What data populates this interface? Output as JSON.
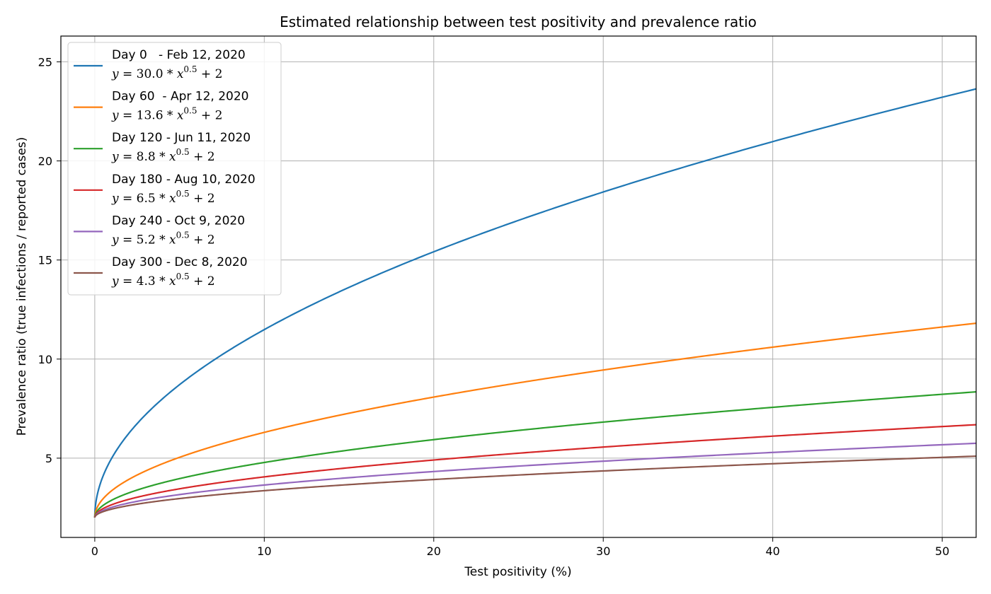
{
  "chart_data": {
    "type": "line",
    "title": "Estimated relationship between test positivity and prevalence ratio",
    "xlabel": "Test positivity (%)",
    "ylabel": "Prevalence ratio (true infections / reported cases)",
    "xlim": [
      -2,
      52
    ],
    "ylim": [
      1,
      26.3
    ],
    "xticks": [
      0,
      10,
      20,
      30,
      40,
      50
    ],
    "yticks": [
      5,
      10,
      15,
      20,
      25
    ],
    "grid": true,
    "legend_position": "upper-left",
    "x_fraction_max": 0.52,
    "series": [
      {
        "name": "Day 0   - Feb 12, 2020",
        "formula": {
          "coef": "30.0",
          "exp": "0.5",
          "const": "2"
        },
        "a": 30.0,
        "b": 2,
        "color": "#1f77b4"
      },
      {
        "name": "Day 60  - Apr 12, 2020",
        "formula": {
          "coef": "13.6",
          "exp": "0.5",
          "const": "2"
        },
        "a": 13.6,
        "b": 2,
        "color": "#ff7f0e"
      },
      {
        "name": "Day 120 - Jun 11, 2020",
        "formula": {
          "coef": "8.8",
          "exp": "0.5",
          "const": "2"
        },
        "a": 8.8,
        "b": 2,
        "color": "#2ca02c"
      },
      {
        "name": "Day 180 - Aug 10, 2020",
        "formula": {
          "coef": "6.5",
          "exp": "0.5",
          "const": "2"
        },
        "a": 6.5,
        "b": 2,
        "color": "#d62728"
      },
      {
        "name": "Day 240 - Oct 9, 2020",
        "formula": {
          "coef": "5.2",
          "exp": "0.5",
          "const": "2"
        },
        "a": 5.2,
        "b": 2,
        "color": "#9467bd"
      },
      {
        "name": "Day 300 - Dec 8, 2020",
        "formula": {
          "coef": "4.3",
          "exp": "0.5",
          "const": "2"
        },
        "a": 4.3,
        "b": 2,
        "color": "#8c564b"
      }
    ]
  }
}
